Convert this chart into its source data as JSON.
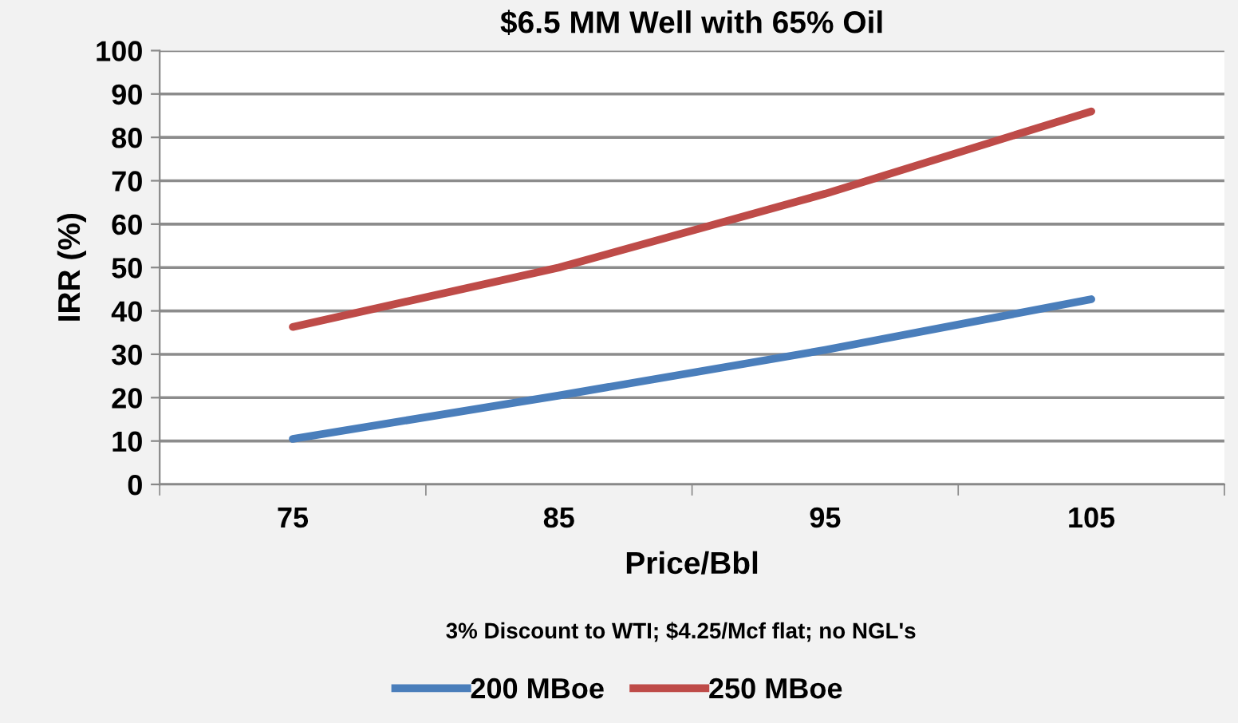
{
  "chart_data": {
    "type": "line",
    "title": "$6.5 MM Well with 65% Oil",
    "xlabel": "Price/Bbl",
    "ylabel": "IRR (%)",
    "annotations": [
      "3% Discount to WTI; $4.25/Mcf flat; no NGL's"
    ],
    "categories": [
      "75",
      "85",
      "95",
      "105"
    ],
    "series": [
      {
        "name": "200 MBoe",
        "color": "#4a7ebb",
        "values": [
          10.5,
          20.5,
          31,
          42.7
        ]
      },
      {
        "name": "250 MBoe",
        "color": "#be4b48",
        "values": [
          36.3,
          50,
          67,
          86
        ]
      }
    ],
    "ylim": [
      0,
      100
    ],
    "yticks": [
      0,
      10,
      20,
      30,
      40,
      50,
      60,
      70,
      80,
      90,
      100
    ],
    "grid": "y",
    "legend": "bottom",
    "marker": "none",
    "line_style": "solid"
  }
}
